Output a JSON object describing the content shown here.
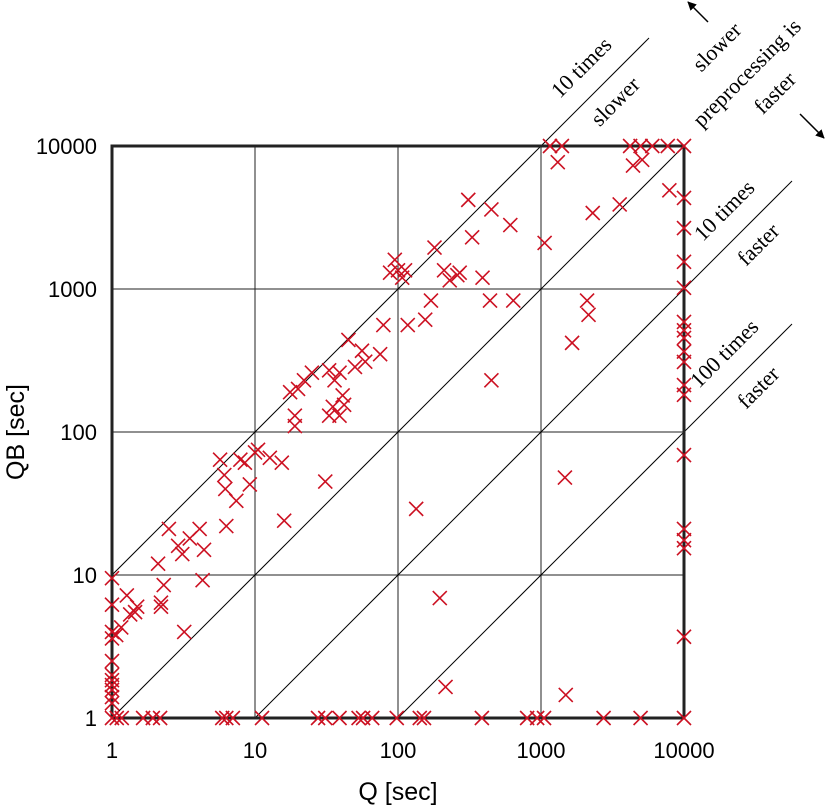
{
  "chart_data": {
    "type": "scatter",
    "log_scale": true,
    "grid": true,
    "marker": "x",
    "color": "#cc1122",
    "xlabel": "Q [sec]",
    "ylabel": "QB [sec]",
    "xlim": [
      1,
      10000
    ],
    "ylim": [
      1,
      10000
    ],
    "xticks": [
      1,
      10,
      100,
      1000,
      10000
    ],
    "yticks": [
      1,
      10,
      100,
      1000,
      10000
    ],
    "reference_lines": [
      {
        "factor": 10,
        "label": [
          "10 times",
          "slower"
        ]
      },
      {
        "factor": 1
      },
      {
        "factor": 0.1,
        "label": [
          "10 times",
          "faster"
        ]
      },
      {
        "factor": 0.01,
        "label": [
          "100 times",
          "faster"
        ]
      }
    ],
    "annotation": [
      "slower",
      "preprocessing is",
      "faster"
    ],
    "x": [
      1.08,
      1.17,
      1.65,
      1.93,
      2.17,
      5.9,
      6.3,
      7.0,
      11.2,
      27.6,
      31,
      39,
      53,
      57,
      66,
      98,
      142,
      152,
      386,
      800,
      940,
      1050,
      2740,
      4970,
      10000,
      10000,
      10000,
      10000,
      10000,
      10000,
      10000,
      10000,
      10000,
      10000,
      10000,
      10000,
      10000,
      10000,
      10000,
      10000,
      10000,
      10000,
      1156,
      1400,
      4200,
      4970,
      6000,
      7700,
      1,
      1,
      1,
      1,
      1,
      1,
      1,
      1,
      1,
      1,
      1,
      1,
      1.07,
      1.16,
      1.27,
      1.34,
      1.45,
      1.5,
      2.2,
      2.2,
      2.1,
      2.3,
      2.5,
      2.9,
      3.2,
      3.1,
      3.5,
      4.1,
      4.3,
      4.4,
      6.3,
      5.7,
      6.2,
      6.1,
      7.4,
      7.9,
      8.5,
      9.2,
      10,
      10.5,
      12.7,
      15.4,
      16,
      19,
      19,
      17.6,
      20,
      22,
      25,
      31,
      33,
      33,
      35,
      36,
      39,
      41,
      39,
      42,
      45,
      50,
      56,
      59,
      75,
      79,
      88,
      95,
      100,
      107,
      112,
      117,
      134,
      155,
      170,
      180,
      196,
      215,
      210,
      230,
      260,
      270,
      310,
      330,
      390,
      450,
      450,
      440,
      610,
      640,
      1060,
      1470,
      1490,
      1310,
      2100,
      2150,
      1650,
      2300,
      3550,
      4400,
      5100,
      7900
    ],
    "values": [
      1,
      1,
      1,
      1,
      1,
      1,
      1,
      1,
      1,
      1,
      1,
      1,
      1,
      1,
      1,
      1,
      1,
      1,
      1,
      1,
      1,
      1,
      1,
      1,
      1,
      10000,
      4330,
      2670,
      1550,
      1020,
      588,
      514,
      455,
      365,
      309,
      213,
      182,
      69,
      21,
      17.5,
      15.4,
      3.7,
      10000,
      10000,
      10000,
      10000,
      10000,
      10000,
      9.5,
      6.2,
      4.0,
      3.6,
      2.5,
      2.0,
      1.84,
      1.7,
      1.57,
      1.4,
      1.27,
      1,
      3.8,
      4.3,
      7.2,
      5.3,
      5.5,
      6.0,
      6.4,
      6.0,
      12,
      8.5,
      21,
      16,
      4.0,
      14,
      18,
      21,
      9.2,
      15,
      22,
      64,
      40,
      50,
      33,
      64,
      61,
      43,
      72,
      75,
      66,
      61,
      24,
      110,
      130,
      190,
      200,
      230,
      260,
      45,
      270,
      130,
      150,
      230,
      260,
      180,
      130,
      155,
      440,
      285,
      370,
      310,
      350,
      560,
      1300,
      1600,
      1350,
      1200,
      1350,
      560,
      29,
      610,
      830,
      1950,
      6.9,
      1.65,
      1350,
      1150,
      1250,
      1300,
      4200,
      2300,
      1200,
      3600,
      230,
      830,
      2800,
      830,
      2100,
      48,
      1.45,
      7700,
      830,
      660,
      420,
      3400,
      3900,
      7300,
      8000,
      4900
    ]
  }
}
